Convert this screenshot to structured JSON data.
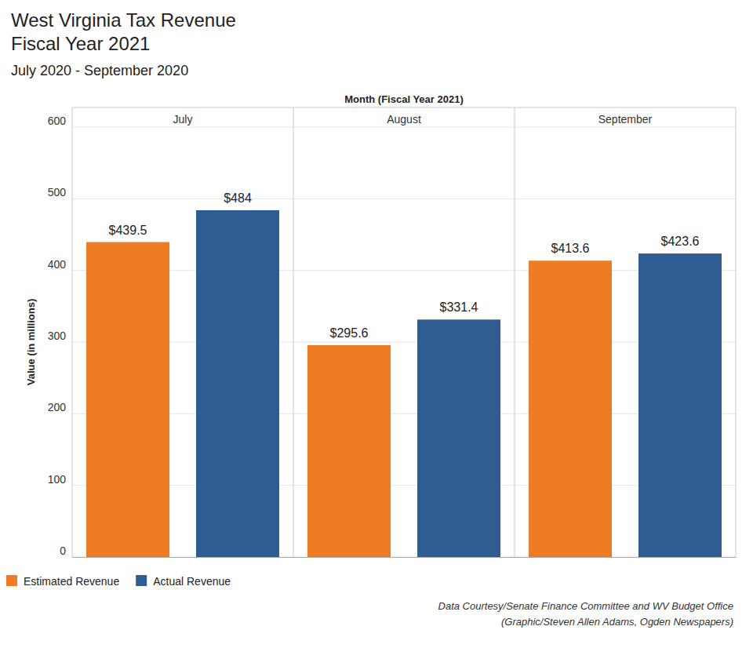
{
  "chart_data": {
    "type": "bar",
    "title": [
      "West Virginia Tax Revenue",
      "Fiscal Year 2021"
    ],
    "subtitle": "July 2020 - September 2020",
    "x_label": "Month (Fiscal Year 2021)",
    "y_label": "Value (in millions)",
    "categories": [
      "July",
      "August",
      "September"
    ],
    "series": [
      {
        "name": "Estimated Revenue",
        "color": "#ef7b24",
        "values": [
          439.5,
          295.6,
          413.6
        ],
        "value_labels": [
          "$439.5",
          "$295.6",
          "$413.6"
        ]
      },
      {
        "name": "Actual Revenue",
        "color": "#2f5d91",
        "values": [
          484,
          331.4,
          423.6
        ],
        "value_labels": [
          "$484",
          "$331.4",
          "$423.6"
        ]
      }
    ],
    "ylim": [
      0,
      600
    ],
    "yticks": [
      0,
      100,
      200,
      300,
      400,
      500,
      600
    ],
    "grid": true,
    "legend": "bottom-left",
    "data_labels": true,
    "source": [
      "Data Courtesy/Senate Finance Committee and WV Budget Office",
      "(Graphic/Steven Allen Adams, Ogden Newspapers)"
    ]
  }
}
